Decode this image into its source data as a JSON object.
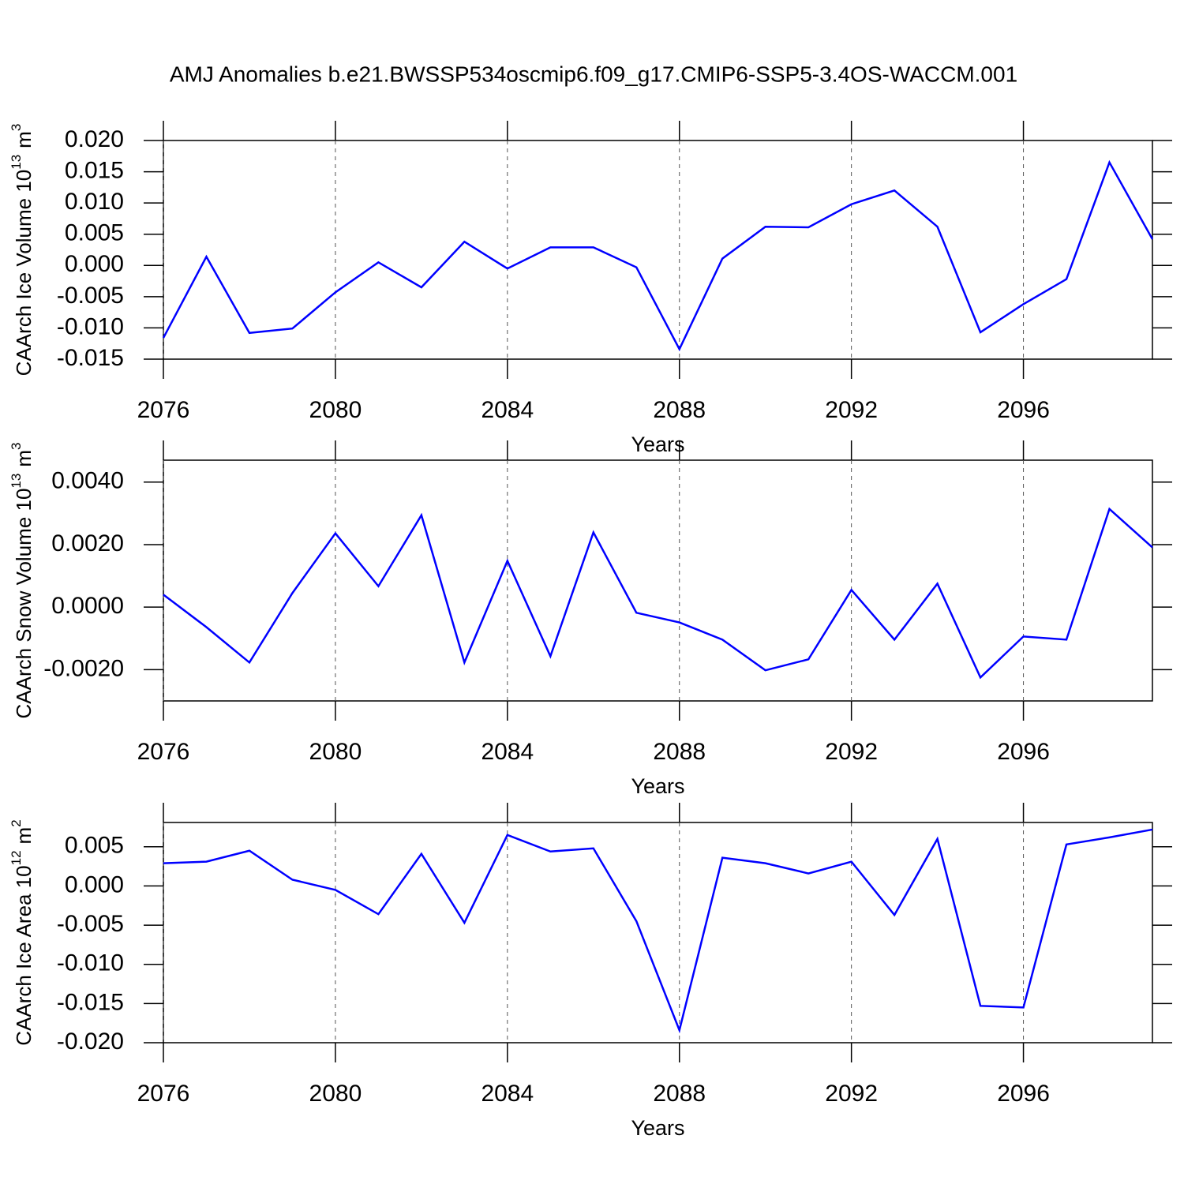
{
  "title": "AMJ Anomalies b.e21.BWSSP534oscmip6.f09_g17.CMIP6-SSP5-3.4OS-WACCM.001",
  "chart_data": [
    {
      "type": "line",
      "color": "#0000ff",
      "xlabel": "Years",
      "ylabel": {
        "base": "CAArch Ice Volume 10",
        "power": "13",
        "unit": "m",
        "unit_power": "3"
      },
      "x": [
        2076,
        2077,
        2078,
        2079,
        2080,
        2081,
        2082,
        2083,
        2084,
        2085,
        2086,
        2087,
        2088,
        2089,
        2090,
        2091,
        2092,
        2093,
        2094,
        2095,
        2096,
        2097,
        2098,
        2099
      ],
      "values": [
        -0.0116,
        0.0014,
        -0.0108,
        -0.0101,
        -0.0043,
        0.0005,
        -0.0035,
        0.0038,
        -0.0005,
        0.0029,
        0.0029,
        -0.0003,
        -0.0134,
        0.0011,
        0.0062,
        0.0061,
        0.0098,
        0.012,
        0.0062,
        -0.0107,
        -0.0062,
        -0.0022,
        0.0165,
        0.0042
      ],
      "xlim": [
        2076,
        2099
      ],
      "xticks": [
        2076,
        2080,
        2084,
        2088,
        2092,
        2096
      ],
      "grid": true,
      "ylim": [
        -0.015,
        0.02
      ],
      "yticks": [
        {
          "value": -0.015,
          "label": "-0.015"
        },
        {
          "value": -0.01,
          "label": "-0.010"
        },
        {
          "value": -0.005,
          "label": "-0.005"
        },
        {
          "value": 0,
          "label": "0.000"
        },
        {
          "value": 0.005,
          "label": "0.005"
        },
        {
          "value": 0.01,
          "label": "0.010"
        },
        {
          "value": 0.015,
          "label": "0.015"
        },
        {
          "value": 0.02,
          "label": "0.020"
        }
      ]
    },
    {
      "type": "line",
      "color": "#0000ff",
      "xlabel": "Years",
      "ylabel": {
        "base": "CAArch Snow Volume 10",
        "power": "13",
        "unit": "m",
        "unit_power": "3"
      },
      "x": [
        2076,
        2077,
        2078,
        2079,
        2080,
        2081,
        2082,
        2083,
        2084,
        2085,
        2086,
        2087,
        2088,
        2089,
        2090,
        2091,
        2092,
        2093,
        2094,
        2095,
        2096,
        2097,
        2098,
        2099
      ],
      "values": [
        0.0004,
        -0.00064,
        -0.00177,
        0.00045,
        0.00236,
        0.00067,
        0.00294,
        -0.00177,
        0.00148,
        -0.00157,
        0.00239,
        -0.00018,
        -0.00049,
        -0.00104,
        -0.00202,
        -0.00167,
        0.00055,
        -0.00104,
        0.00075,
        -0.00225,
        -0.00094,
        -0.00104,
        0.00314,
        0.00191
      ],
      "xlim": [
        2076,
        2099
      ],
      "xticks": [
        2076,
        2080,
        2084,
        2088,
        2092,
        2096
      ],
      "grid": true,
      "ylim": [
        -0.003,
        0.0047
      ],
      "yticks": [
        {
          "value": -0.002,
          "label": "-0.0020"
        },
        {
          "value": 0,
          "label": "0.0000"
        },
        {
          "value": 0.002,
          "label": "0.0020"
        },
        {
          "value": 0.004,
          "label": "0.0040"
        }
      ]
    },
    {
      "type": "line",
      "color": "#0000ff",
      "xlabel": "Years",
      "ylabel": {
        "base": "CAArch Ice Area 10",
        "power": "12",
        "unit": "m",
        "unit_power": "2"
      },
      "x": [
        2076,
        2077,
        2078,
        2079,
        2080,
        2081,
        2082,
        2083,
        2084,
        2085,
        2086,
        2087,
        2088,
        2089,
        2090,
        2091,
        2092,
        2093,
        2094,
        2095,
        2096,
        2097,
        2098,
        2099
      ],
      "values": [
        0.0029,
        0.0031,
        0.0045,
        0.0008,
        -0.0005,
        -0.0036,
        0.0041,
        -0.0047,
        0.0065,
        0.0044,
        0.0048,
        -0.0045,
        -0.0184,
        0.0036,
        0.0029,
        0.0016,
        0.0031,
        -0.0037,
        0.006,
        -0.0153,
        -0.0155,
        0.0053,
        0.0062,
        0.0072
      ],
      "xlim": [
        2076,
        2099
      ],
      "xticks": [
        2076,
        2080,
        2084,
        2088,
        2092,
        2096
      ],
      "grid": true,
      "ylim": [
        -0.02,
        0.0081
      ],
      "yticks": [
        {
          "value": -0.02,
          "label": "-0.020"
        },
        {
          "value": -0.015,
          "label": "-0.015"
        },
        {
          "value": -0.01,
          "label": "-0.010"
        },
        {
          "value": -0.005,
          "label": "-0.005"
        },
        {
          "value": 0,
          "label": "0.000"
        },
        {
          "value": 0.005,
          "label": "0.005"
        }
      ]
    }
  ]
}
